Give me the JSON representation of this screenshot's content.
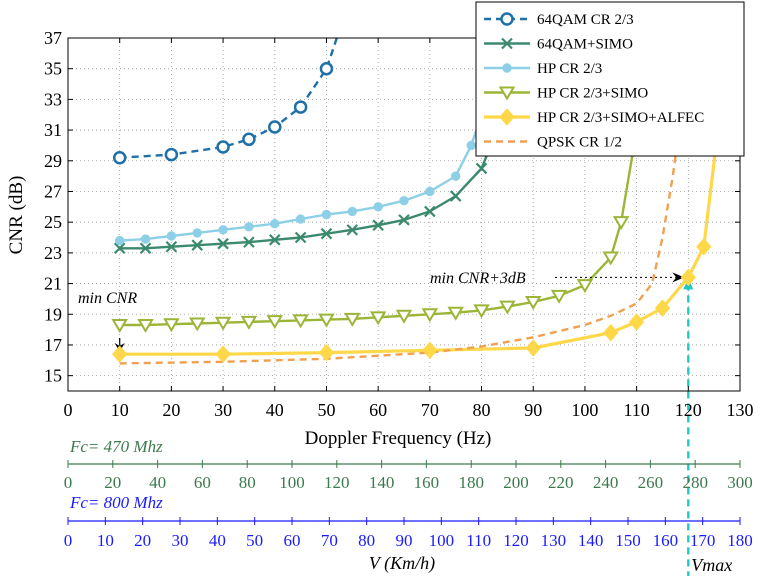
{
  "chart_data": {
    "type": "line",
    "xlabel": "Doppler Frequency  (Hz)",
    "ylabel": "CNR (dB)",
    "xlim": [
      0,
      130
    ],
    "ylim": [
      14,
      37
    ],
    "xticks": [
      0,
      10,
      20,
      30,
      40,
      50,
      60,
      70,
      80,
      90,
      100,
      110,
      120,
      130
    ],
    "yticks": [
      15,
      17,
      19,
      21,
      23,
      25,
      27,
      29,
      31,
      33,
      35,
      37
    ],
    "grid": true,
    "legend_position": "top-right",
    "annotations": {
      "min_cnr": "min CNR",
      "min_cnr_3db": "min CNR+3dB",
      "vmax": "Vmax"
    },
    "series": [
      {
        "name": "64QAM CR 2/3",
        "color": "#1f6fa8",
        "dash": "dash",
        "marker": "circle-open",
        "x": [
          10,
          20,
          30,
          35,
          40,
          45,
          50,
          52
        ],
        "y": [
          29.2,
          29.4,
          29.9,
          30.4,
          31.2,
          32.5,
          35.0,
          37.0
        ],
        "marker_x": [
          10,
          20,
          30,
          35,
          40,
          45,
          50
        ]
      },
      {
        "name": "64QAM+SIMO",
        "color": "#3c8a6e",
        "dash": "solid",
        "marker": "x",
        "x": [
          10,
          15,
          20,
          25,
          30,
          35,
          40,
          45,
          50,
          55,
          60,
          65,
          70,
          75,
          80,
          83,
          85
        ],
        "y": [
          23.3,
          23.3,
          23.4,
          23.5,
          23.6,
          23.7,
          23.85,
          24.0,
          24.25,
          24.5,
          24.8,
          25.15,
          25.7,
          26.7,
          28.5,
          31.0,
          37.0
        ],
        "marker_x": [
          10,
          15,
          20,
          25,
          30,
          35,
          40,
          45,
          50,
          55,
          60,
          65,
          70,
          75,
          80
        ]
      },
      {
        "name": "HP CR 2/3",
        "color": "#8ecfe8",
        "dash": "solid",
        "marker": "circle",
        "x": [
          10,
          15,
          20,
          25,
          30,
          35,
          40,
          45,
          50,
          55,
          60,
          65,
          70,
          75,
          78,
          80,
          81
        ],
        "y": [
          23.8,
          23.9,
          24.1,
          24.3,
          24.5,
          24.7,
          24.9,
          25.2,
          25.5,
          25.7,
          26.0,
          26.4,
          27.0,
          28.0,
          30.0,
          32.0,
          33.0
        ],
        "marker_x": [
          10,
          15,
          20,
          25,
          30,
          35,
          40,
          45,
          50,
          55,
          60,
          65,
          70,
          75,
          78
        ]
      },
      {
        "name": "HP CR 2/3+SIMO",
        "color": "#9bb536",
        "dash": "solid",
        "marker": "triangle-down-open",
        "x": [
          10,
          15,
          20,
          25,
          30,
          35,
          40,
          45,
          50,
          55,
          60,
          65,
          70,
          75,
          80,
          85,
          90,
          95,
          100,
          105,
          107,
          110,
          112
        ],
        "y": [
          18.3,
          18.3,
          18.35,
          18.4,
          18.45,
          18.5,
          18.55,
          18.6,
          18.65,
          18.7,
          18.8,
          18.9,
          19.0,
          19.1,
          19.25,
          19.5,
          19.8,
          20.2,
          20.9,
          22.7,
          25.0,
          31.0,
          37.0
        ],
        "marker_x": [
          10,
          15,
          20,
          25,
          30,
          35,
          40,
          45,
          50,
          55,
          60,
          65,
          70,
          75,
          80,
          85,
          90,
          95,
          100,
          105,
          107
        ]
      },
      {
        "name": "HP CR 2/3+SIMO+ALFEC",
        "color": "#ffd84a",
        "dash": "solid",
        "marker": "diamond",
        "x": [
          10,
          30,
          50,
          70,
          90,
          105,
          110,
          115,
          120,
          123,
          125,
          127
        ],
        "y": [
          16.4,
          16.4,
          16.5,
          16.65,
          16.8,
          17.8,
          18.5,
          19.4,
          21.4,
          23.4,
          29.0,
          37.0
        ],
        "marker_x": [
          10,
          30,
          50,
          70,
          90,
          105,
          110,
          115,
          120,
          123
        ]
      },
      {
        "name": "QPSK CR 1/2",
        "color": "#f0a050",
        "dash": "dash",
        "marker": "none",
        "x": [
          10,
          30,
          50,
          70,
          80,
          90,
          100,
          105,
          110,
          113,
          115,
          117,
          119,
          120
        ],
        "y": [
          15.8,
          15.9,
          16.1,
          16.5,
          16.9,
          17.5,
          18.3,
          18.9,
          19.7,
          21.0,
          24.0,
          28.0,
          33.0,
          37.0
        ],
        "marker_x": []
      }
    ],
    "secondary_axes": [
      {
        "label": "Fc= 470 Mhz",
        "color": "#3b7a4d",
        "min": 0,
        "max": 300,
        "ticks": [
          0,
          20,
          40,
          60,
          80,
          100,
          120,
          140,
          160,
          180,
          200,
          220,
          240,
          260,
          280,
          300
        ]
      },
      {
        "label": "Fc= 800 Mhz",
        "color": "#1a1aff",
        "min": 0,
        "max": 180,
        "ticks": [
          0,
          10,
          20,
          30,
          40,
          50,
          60,
          70,
          80,
          90,
          100,
          110,
          120,
          130,
          140,
          150,
          160,
          170,
          180
        ],
        "title": "V (Km/h)"
      }
    ]
  }
}
